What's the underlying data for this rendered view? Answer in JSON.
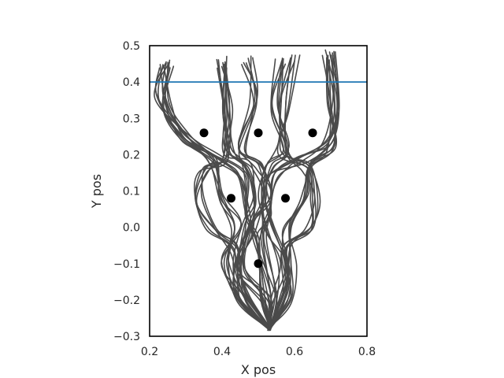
{
  "chart_data": {
    "type": "line",
    "title": "",
    "xlabel": "X pos",
    "ylabel": "Y pos",
    "xlim": [
      0.2,
      0.8
    ],
    "ylim": [
      -0.3,
      0.5
    ],
    "xticks": [
      0.2,
      0.4,
      0.6,
      0.8
    ],
    "xtick_labels": [
      "0.2",
      "0.4",
      "0.6",
      "0.8"
    ],
    "yticks": [
      -0.3,
      -0.2,
      -0.1,
      0.0,
      0.1,
      0.2,
      0.3,
      0.4,
      0.5
    ],
    "ytick_labels": [
      "−0.3",
      "−0.2",
      "−0.1",
      "0.0",
      "0.1",
      "0.2",
      "0.3",
      "0.4",
      "0.5"
    ],
    "grid": false,
    "legend": "none",
    "hline": {
      "y": 0.4,
      "color": "#1f77b4"
    },
    "obstacles": [
      {
        "x": 0.35,
        "y": 0.26
      },
      {
        "x": 0.5,
        "y": 0.26
      },
      {
        "x": 0.65,
        "y": 0.26
      },
      {
        "x": 0.425,
        "y": 0.08
      },
      {
        "x": 0.575,
        "y": 0.08
      },
      {
        "x": 0.5,
        "y": -0.1
      }
    ],
    "trajectory_color": "#4a4a4a",
    "trajectory_templates": [
      [
        [
          0.53,
          -0.28
        ],
        [
          0.45,
          -0.2
        ],
        [
          0.41,
          -0.1
        ],
        [
          0.44,
          0.0
        ],
        [
          0.39,
          0.08
        ],
        [
          0.37,
          0.18
        ],
        [
          0.3,
          0.25
        ],
        [
          0.25,
          0.34
        ],
        [
          0.25,
          0.45
        ]
      ],
      [
        [
          0.53,
          -0.28
        ],
        [
          0.46,
          -0.2
        ],
        [
          0.44,
          -0.1
        ],
        [
          0.47,
          0.0
        ],
        [
          0.48,
          0.08
        ],
        [
          0.47,
          0.17
        ],
        [
          0.42,
          0.21
        ],
        [
          0.42,
          0.32
        ],
        [
          0.4,
          0.45
        ]
      ],
      [
        [
          0.53,
          -0.28
        ],
        [
          0.52,
          -0.2
        ],
        [
          0.45,
          -0.12
        ],
        [
          0.48,
          0.0
        ],
        [
          0.52,
          0.08
        ],
        [
          0.5,
          0.17
        ],
        [
          0.45,
          0.22
        ],
        [
          0.49,
          0.35
        ],
        [
          0.47,
          0.46
        ]
      ],
      [
        [
          0.53,
          -0.28
        ],
        [
          0.55,
          -0.2
        ],
        [
          0.57,
          -0.1
        ],
        [
          0.53,
          0.0
        ],
        [
          0.51,
          0.08
        ],
        [
          0.53,
          0.17
        ],
        [
          0.57,
          0.22
        ],
        [
          0.55,
          0.33
        ],
        [
          0.56,
          0.46
        ]
      ],
      [
        [
          0.53,
          -0.28
        ],
        [
          0.58,
          -0.2
        ],
        [
          0.59,
          -0.1
        ],
        [
          0.58,
          0.0
        ],
        [
          0.63,
          0.08
        ],
        [
          0.64,
          0.17
        ],
        [
          0.7,
          0.22
        ],
        [
          0.7,
          0.34
        ],
        [
          0.69,
          0.47
        ]
      ],
      [
        [
          0.53,
          -0.28
        ],
        [
          0.45,
          -0.18
        ],
        [
          0.43,
          -0.06
        ],
        [
          0.37,
          0.0
        ],
        [
          0.34,
          0.08
        ],
        [
          0.35,
          0.16
        ],
        [
          0.41,
          0.19
        ],
        [
          0.41,
          0.32
        ],
        [
          0.4,
          0.46
        ]
      ],
      [
        [
          0.53,
          -0.28
        ],
        [
          0.58,
          -0.17
        ],
        [
          0.58,
          -0.06
        ],
        [
          0.64,
          0.0
        ],
        [
          0.66,
          0.08
        ],
        [
          0.63,
          0.16
        ],
        [
          0.57,
          0.2
        ],
        [
          0.57,
          0.33
        ],
        [
          0.6,
          0.47
        ]
      ],
      [
        [
          0.53,
          -0.28
        ],
        [
          0.52,
          -0.19
        ],
        [
          0.5,
          -0.04
        ],
        [
          0.48,
          0.04
        ],
        [
          0.46,
          0.14
        ],
        [
          0.39,
          0.19
        ],
        [
          0.3,
          0.25
        ],
        [
          0.23,
          0.36
        ],
        [
          0.24,
          0.45
        ]
      ],
      [
        [
          0.53,
          -0.28
        ],
        [
          0.54,
          -0.19
        ],
        [
          0.51,
          -0.04
        ],
        [
          0.52,
          0.04
        ],
        [
          0.54,
          0.14
        ],
        [
          0.62,
          0.19
        ],
        [
          0.69,
          0.24
        ],
        [
          0.72,
          0.34
        ],
        [
          0.7,
          0.48
        ]
      ]
    ]
  }
}
